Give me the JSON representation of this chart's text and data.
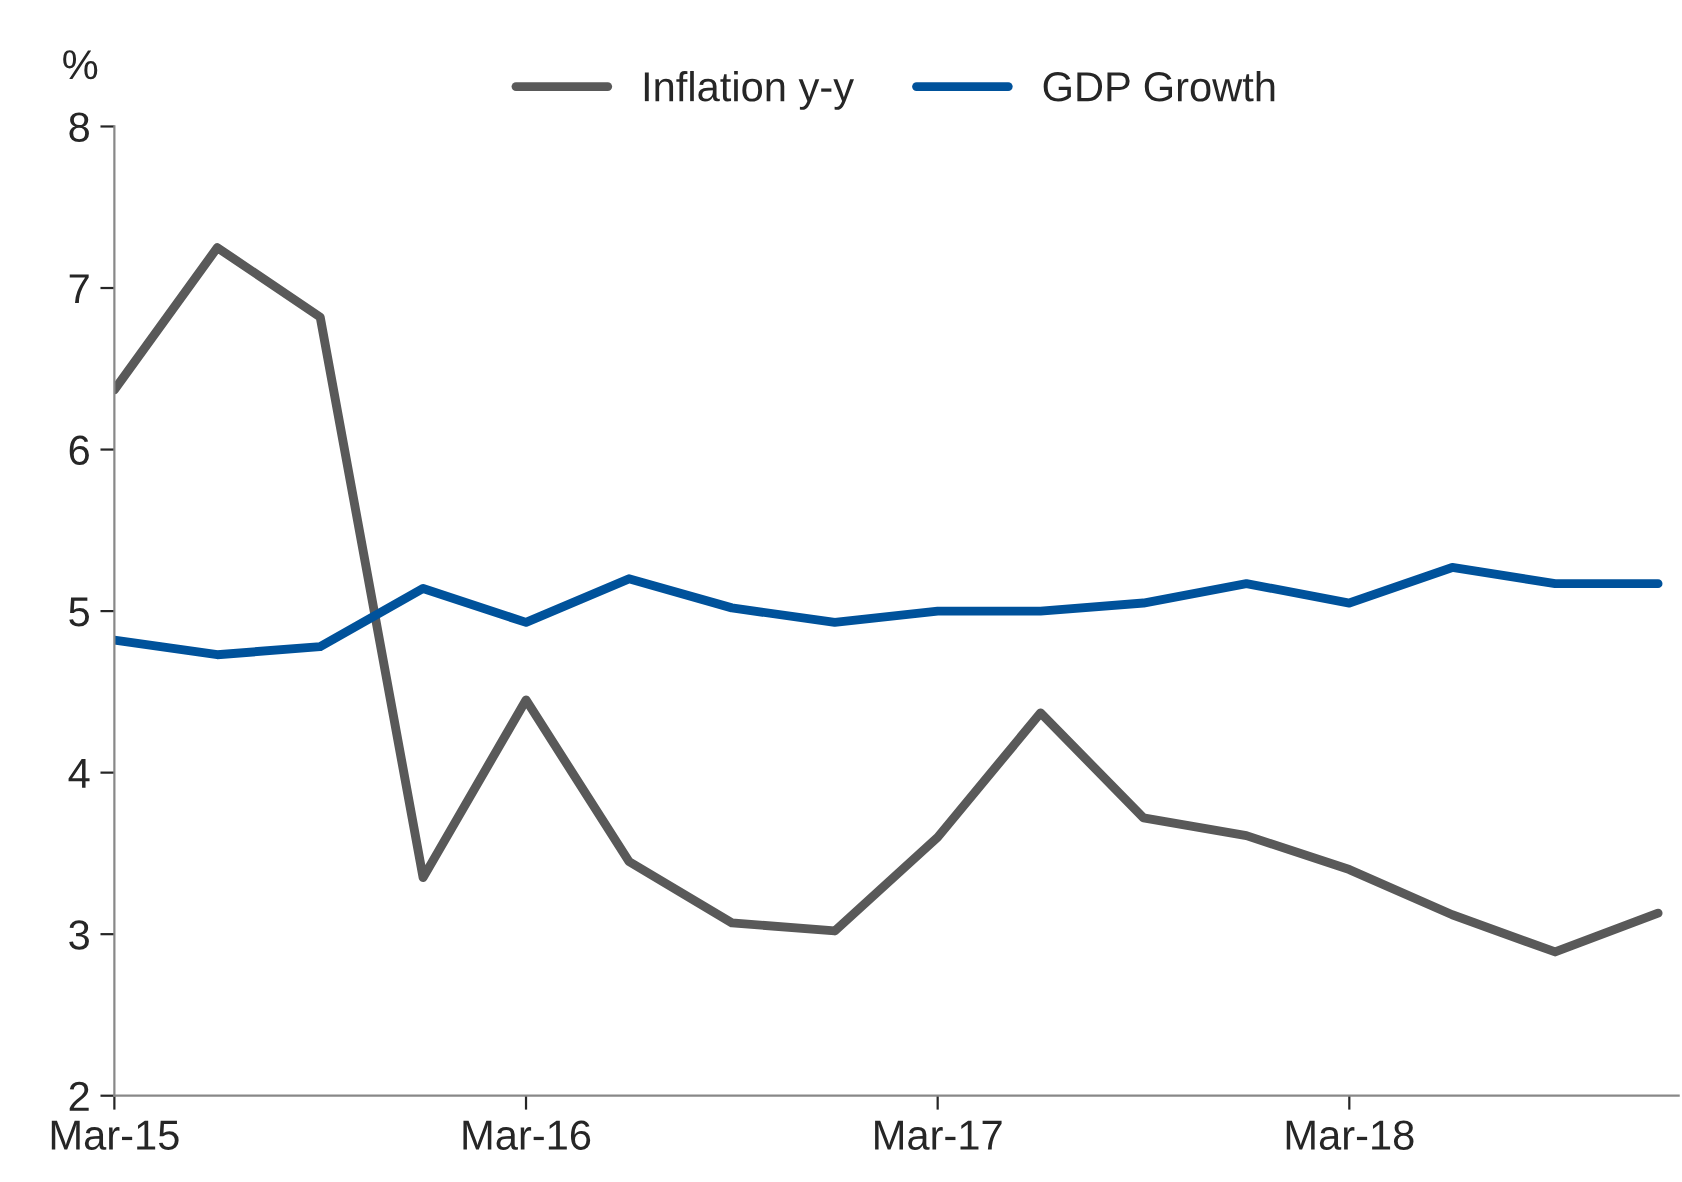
{
  "chart_data": {
    "type": "line",
    "ylabel": "%",
    "categories": [
      "Mar-15",
      null,
      null,
      null,
      "Mar-16",
      null,
      null,
      null,
      "Mar-17",
      null,
      null,
      null,
      "Mar-18",
      null,
      null,
      null
    ],
    "series": [
      {
        "name": "Inflation y-y",
        "color": "#595959",
        "values": [
          6.37,
          7.25,
          6.82,
          3.35,
          4.45,
          3.45,
          3.07,
          3.02,
          3.6,
          4.37,
          3.72,
          3.61,
          3.4,
          3.12,
          2.89,
          3.13
        ]
      },
      {
        "name": "GDP Growth",
        "color": "#00529b",
        "values": [
          4.82,
          4.73,
          4.78,
          5.14,
          4.93,
          5.2,
          5.02,
          4.93,
          5.0,
          5.0,
          5.05,
          5.17,
          5.05,
          5.27,
          5.17,
          5.17
        ]
      }
    ],
    "ylim": [
      2,
      8
    ],
    "yticks": [
      2,
      3,
      4,
      5,
      6,
      7,
      8
    ],
    "grid": false,
    "legend": "top",
    "marker": "none",
    "line_style": "solid"
  }
}
